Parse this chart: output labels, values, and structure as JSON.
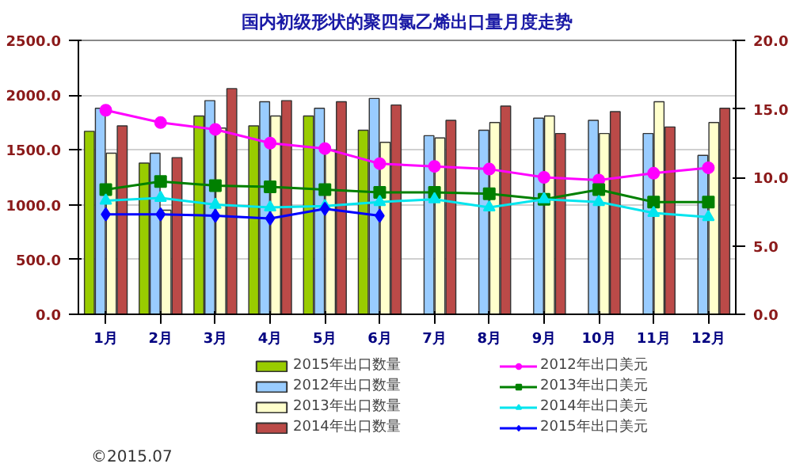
{
  "chart_data": {
    "type": "bar",
    "title": "国内初级形状的聚四氯乙烯出口量月度走势",
    "categories": [
      "1月",
      "2月",
      "3月",
      "4月",
      "5月",
      "6月",
      "7月",
      "8月",
      "9月",
      "10月",
      "11月",
      "12月"
    ],
    "series": [
      {
        "name": "2015年出口数量",
        "color": "#99cc00",
        "values": [
          1670,
          1380,
          1810,
          1720,
          1810,
          1680,
          null,
          null,
          null,
          null,
          null,
          null
        ]
      },
      {
        "name": "2012年出口数量",
        "color": "#99ccff",
        "values": [
          1880,
          1470,
          1950,
          1940,
          1880,
          1970,
          1630,
          1680,
          1790,
          1770,
          1650,
          1450
        ]
      },
      {
        "name": "2013年出口数量",
        "color": "#ffffcc",
        "values": [
          1470,
          950,
          1700,
          1810,
          1500,
          1570,
          1610,
          1750,
          1810,
          1650,
          1940,
          1750
        ]
      },
      {
        "name": "2014年出口数量",
        "color": "#bb4a48",
        "values": [
          1720,
          1430,
          2060,
          1950,
          1940,
          1910,
          1770,
          1900,
          1650,
          1850,
          1710,
          1880
        ]
      },
      {
        "name": "2012年出口美元",
        "type": "line",
        "axis": "y2",
        "marker": "circle",
        "color": "#ff00ff",
        "values": [
          14.9,
          14.0,
          13.5,
          12.5,
          12.1,
          11.0,
          10.8,
          10.6,
          10.0,
          9.8,
          10.3,
          10.7
        ]
      },
      {
        "name": "2013年出口美元",
        "type": "line",
        "axis": "y2",
        "marker": "square",
        "color": "#008000",
        "values": [
          9.1,
          9.7,
          9.4,
          9.3,
          9.1,
          8.9,
          8.9,
          8.8,
          8.4,
          9.1,
          8.2,
          8.2
        ]
      },
      {
        "name": "2014年出口美元",
        "type": "line",
        "axis": "y2",
        "marker": "triangle",
        "color": "#00e5ee",
        "values": [
          8.3,
          8.5,
          8.0,
          7.8,
          7.9,
          8.2,
          8.4,
          7.8,
          8.4,
          8.2,
          7.4,
          7.1
        ]
      },
      {
        "name": "2015年出口美元",
        "type": "line",
        "axis": "y2",
        "marker": "diamond",
        "color": "#0000ff",
        "values": [
          7.3,
          7.3,
          7.2,
          7.0,
          7.7,
          7.2,
          null,
          null,
          null,
          null,
          null,
          null
        ]
      }
    ],
    "ylim": [
      0,
      2500
    ],
    "yticks": [
      {
        "value": 0,
        "label": "0.0"
      },
      {
        "value": 500,
        "label": "500.0"
      },
      {
        "value": 1000,
        "label": "1000.0"
      },
      {
        "value": 1500,
        "label": "1500.0"
      },
      {
        "value": 2000,
        "label": "2000.0"
      },
      {
        "value": 2500,
        "label": "2500.0"
      }
    ],
    "y2lim": [
      0,
      20
    ],
    "y2ticks": [
      {
        "value": 0,
        "label": "0.0"
      },
      {
        "value": 5,
        "label": "5.0"
      },
      {
        "value": 10,
        "label": "10.0"
      },
      {
        "value": 15,
        "label": "15.0"
      },
      {
        "value": 20,
        "label": "20.0"
      }
    ],
    "grid": "y",
    "legend": "bottom",
    "line_style": "solid",
    "annotations": [
      "©2015.07"
    ]
  }
}
